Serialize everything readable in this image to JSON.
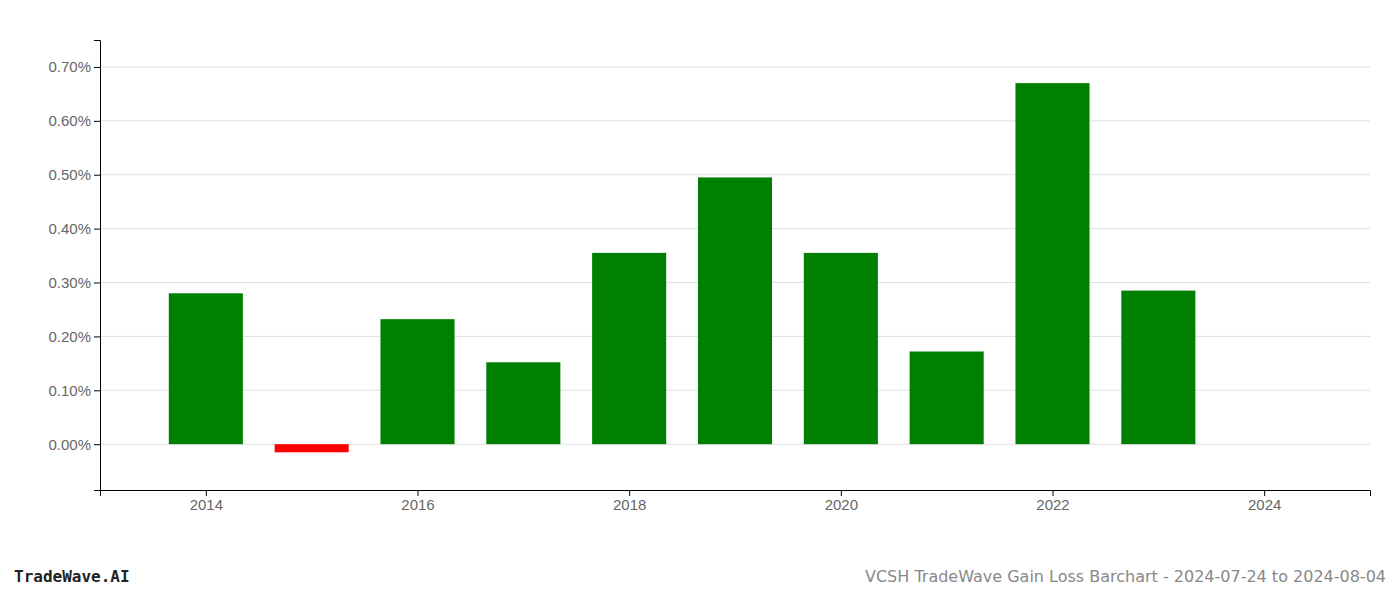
{
  "chart_data": {
    "type": "bar",
    "x": [
      2014,
      2015,
      2016,
      2017,
      2018,
      2019,
      2020,
      2021,
      2022,
      2023
    ],
    "values": [
      0.0028,
      -0.00015,
      0.00232,
      0.00152,
      0.00355,
      0.00495,
      0.00355,
      0.00172,
      0.0067,
      0.00285
    ],
    "colors": [
      "#008000",
      "#ff0000",
      "#008000",
      "#008000",
      "#008000",
      "#008000",
      "#008000",
      "#008000",
      "#008000",
      "#008000"
    ],
    "xlim": [
      2013.0,
      2025.0
    ],
    "xticks": [
      2014,
      2016,
      2018,
      2020,
      2022,
      2024
    ],
    "ylim": [
      -0.00085,
      0.0075
    ],
    "yticks": [
      {
        "value": 0,
        "label": "0.00%"
      },
      {
        "value": 0.001,
        "label": "0.10%"
      },
      {
        "value": 0.002,
        "label": "0.20%"
      },
      {
        "value": 0.003,
        "label": "0.30%"
      },
      {
        "value": 0.004,
        "label": "0.40%"
      },
      {
        "value": 0.005,
        "label": "0.50%"
      },
      {
        "value": 0.006,
        "label": "0.60%"
      },
      {
        "value": 0.007,
        "label": "0.70%"
      }
    ],
    "grid": true,
    "annotations": [
      "TradeWave.AI",
      "VCSH TradeWave Gain Loss Barchart - 2024-07-24 to 2024-08-04"
    ]
  }
}
